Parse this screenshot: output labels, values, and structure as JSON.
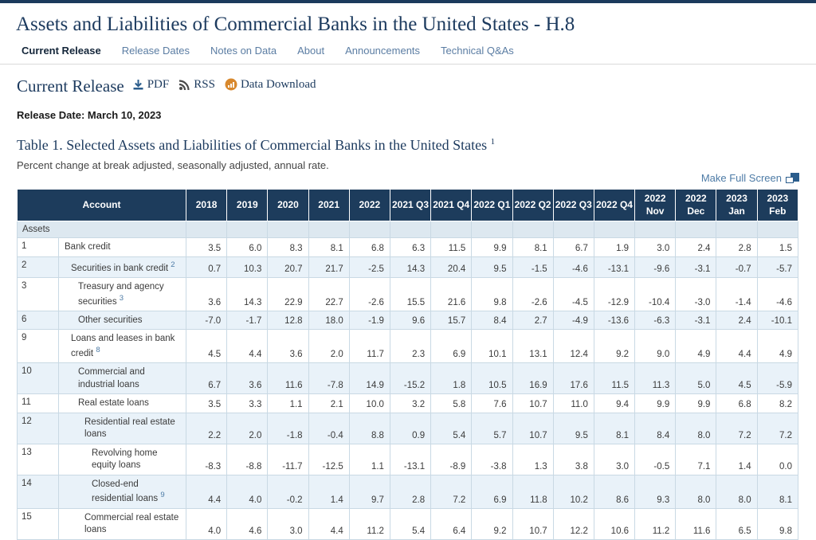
{
  "page": {
    "title": "Assets and Liabilities of Commercial Banks in the United States - H.8"
  },
  "nav": {
    "items": [
      {
        "label": "Current Release",
        "active": true
      },
      {
        "label": "Release Dates",
        "active": false
      },
      {
        "label": "Notes on Data",
        "active": false
      },
      {
        "label": "About",
        "active": false
      },
      {
        "label": "Announcements",
        "active": false
      },
      {
        "label": "Technical Q&As",
        "active": false
      }
    ]
  },
  "release": {
    "heading": "Current Release",
    "links": [
      {
        "label": "PDF",
        "icon": "download-icon"
      },
      {
        "label": "RSS",
        "icon": "rss-icon"
      },
      {
        "label": "Data Download",
        "icon": "data-download-icon"
      }
    ],
    "date_label": "Release Date:",
    "date": "March 10, 2023"
  },
  "table_section": {
    "title": "Table 1. Selected Assets and Liabilities of Commercial Banks in the United States",
    "title_footnote": "1",
    "subtitle": "Percent change at break adjusted, seasonally adjusted, annual rate.",
    "fullscreen_label": "Make Full Screen"
  },
  "table": {
    "account_header": "Account",
    "section_label": "Assets",
    "columns": [
      [
        "2018"
      ],
      [
        "2019"
      ],
      [
        "2020"
      ],
      [
        "2021"
      ],
      [
        "2022"
      ],
      [
        "2021 Q3"
      ],
      [
        "2021 Q4"
      ],
      [
        "2022 Q1"
      ],
      [
        "2022 Q2"
      ],
      [
        "2022 Q3"
      ],
      [
        "2022 Q4"
      ],
      [
        "2022",
        "Nov"
      ],
      [
        "2022",
        "Dec"
      ],
      [
        "2023",
        "Jan"
      ],
      [
        "2023",
        "Feb"
      ]
    ],
    "rows": [
      {
        "num": "1",
        "label": "Bank credit",
        "footnote": "",
        "indent": 1,
        "values": [
          "3.5",
          "6.0",
          "8.3",
          "8.1",
          "6.8",
          "6.3",
          "11.5",
          "9.9",
          "8.1",
          "6.7",
          "1.9",
          "3.0",
          "2.4",
          "2.8",
          "1.5"
        ]
      },
      {
        "num": "2",
        "label": "Securities in bank credit",
        "footnote": "2",
        "indent": 2,
        "values": [
          "0.7",
          "10.3",
          "20.7",
          "21.7",
          "-2.5",
          "14.3",
          "20.4",
          "9.5",
          "-1.5",
          "-4.6",
          "-13.1",
          "-9.6",
          "-3.1",
          "-0.7",
          "-5.7"
        ]
      },
      {
        "num": "3",
        "label": "Treasury and agency securities",
        "footnote": "3",
        "indent": 3,
        "values": [
          "3.6",
          "14.3",
          "22.9",
          "22.7",
          "-2.6",
          "15.5",
          "21.6",
          "9.8",
          "-2.6",
          "-4.5",
          "-12.9",
          "-10.4",
          "-3.0",
          "-1.4",
          "-4.6"
        ]
      },
      {
        "num": "6",
        "label": "Other securities",
        "footnote": "",
        "indent": 3,
        "values": [
          "-7.0",
          "-1.7",
          "12.8",
          "18.0",
          "-1.9",
          "9.6",
          "15.7",
          "8.4",
          "2.7",
          "-4.9",
          "-13.6",
          "-6.3",
          "-3.1",
          "2.4",
          "-10.1"
        ]
      },
      {
        "num": "9",
        "label": "Loans and leases in bank credit",
        "footnote": "8",
        "indent": 2,
        "values": [
          "4.5",
          "4.4",
          "3.6",
          "2.0",
          "11.7",
          "2.3",
          "6.9",
          "10.1",
          "13.1",
          "12.4",
          "9.2",
          "9.0",
          "4.9",
          "4.4",
          "4.9"
        ]
      },
      {
        "num": "10",
        "label": "Commercial and industrial loans",
        "footnote": "",
        "indent": 3,
        "values": [
          "6.7",
          "3.6",
          "11.6",
          "-7.8",
          "14.9",
          "-15.2",
          "1.8",
          "10.5",
          "16.9",
          "17.6",
          "11.5",
          "11.3",
          "5.0",
          "4.5",
          "-5.9"
        ]
      },
      {
        "num": "11",
        "label": "Real estate loans",
        "footnote": "",
        "indent": 3,
        "values": [
          "3.5",
          "3.3",
          "1.1",
          "2.1",
          "10.0",
          "3.2",
          "5.8",
          "7.6",
          "10.7",
          "11.0",
          "9.4",
          "9.9",
          "9.9",
          "6.8",
          "8.2"
        ]
      },
      {
        "num": "12",
        "label": "Residential real estate loans",
        "footnote": "",
        "indent": 4,
        "values": [
          "2.2",
          "2.0",
          "-1.8",
          "-0.4",
          "8.8",
          "0.9",
          "5.4",
          "5.7",
          "10.7",
          "9.5",
          "8.1",
          "8.4",
          "8.0",
          "7.2",
          "7.2"
        ]
      },
      {
        "num": "13",
        "label": "Revolving home equity loans",
        "footnote": "",
        "indent": 5,
        "values": [
          "-8.3",
          "-8.8",
          "-11.7",
          "-12.5",
          "1.1",
          "-13.1",
          "-8.9",
          "-3.8",
          "1.3",
          "3.8",
          "3.0",
          "-0.5",
          "7.1",
          "1.4",
          "0.0"
        ]
      },
      {
        "num": "14",
        "label": "Closed-end residential loans",
        "footnote": "9",
        "indent": 5,
        "values": [
          "4.4",
          "4.0",
          "-0.2",
          "1.4",
          "9.7",
          "2.8",
          "7.2",
          "6.9",
          "11.8",
          "10.2",
          "8.6",
          "9.3",
          "8.0",
          "8.0",
          "8.1"
        ]
      },
      {
        "num": "15",
        "label": "Commercial real estate loans",
        "footnote": "",
        "indent": 4,
        "values": [
          "4.0",
          "4.6",
          "3.0",
          "4.4",
          "11.2",
          "5.4",
          "6.4",
          "9.2",
          "10.7",
          "12.2",
          "10.6",
          "11.2",
          "11.6",
          "6.5",
          "9.8"
        ]
      }
    ]
  },
  "colors": {
    "accent_navy": "#1c3a5e",
    "header_bg": "#1d3c5c",
    "link_blue": "#4d7ba6",
    "shaded_row": "#e9f2f9",
    "section_row": "#dde8f0",
    "data_download_orange": "#d8882d"
  }
}
